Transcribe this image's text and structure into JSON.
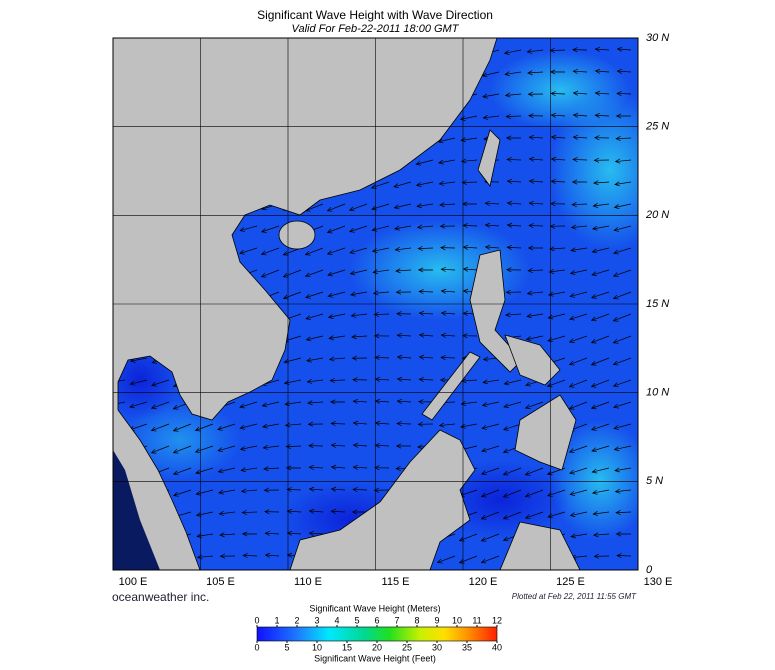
{
  "title": "Significant Wave Height with Wave Direction",
  "subtitle": "Valid For Feb-22-2011 18:00 GMT",
  "map": {
    "lonlim": [
      100,
      130
    ],
    "latlim": [
      0,
      30
    ],
    "lon_ticks": [
      {
        "value": 100,
        "label": "100 E"
      },
      {
        "value": 105,
        "label": "105 E"
      },
      {
        "value": 110,
        "label": "110 E"
      },
      {
        "value": 115,
        "label": "115 E"
      },
      {
        "value": 120,
        "label": "120 E"
      },
      {
        "value": 125,
        "label": "125 E"
      },
      {
        "value": 130,
        "label": "130 E"
      }
    ],
    "lat_ticks": [
      0,
      {
        "value": 5,
        "label": "5 N"
      },
      {
        "value": 10,
        "label": "10 N"
      },
      {
        "value": 15,
        "label": "15 N"
      },
      {
        "value": 20,
        "label": "20 N"
      },
      {
        "value": 25,
        "label": "25 N"
      },
      {
        "value": 30,
        "label": "30 N"
      }
    ]
  },
  "brand": "oceanweather inc.",
  "plotted": "Plotted at Feb 22, 2011 11:55 GMT",
  "colorbar": {
    "meters_title": "Significant Wave Height (Meters)",
    "meters_lim": [
      0,
      12
    ],
    "meters_ticks": [
      0,
      1,
      2,
      3,
      4,
      5,
      6,
      7,
      8,
      9,
      10,
      11,
      12
    ],
    "feet_title": "Significant Wave Height (Feet)",
    "feet_lim": [
      0,
      40
    ],
    "feet_ticks": [
      0,
      5,
      10,
      15,
      20,
      25,
      30,
      35,
      40
    ]
  }
}
